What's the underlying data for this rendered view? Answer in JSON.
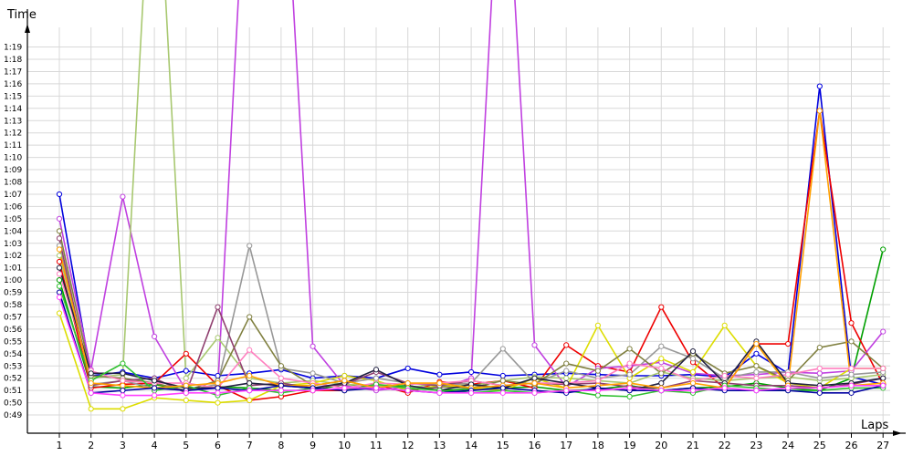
{
  "chart_data": {
    "type": "line",
    "title": "",
    "xlabel": "Laps",
    "ylabel": "Time",
    "grid": true,
    "legend": "none",
    "x": [
      1,
      2,
      3,
      4,
      5,
      6,
      7,
      8,
      9,
      10,
      11,
      12,
      13,
      14,
      15,
      16,
      17,
      18,
      19,
      20,
      21,
      22,
      23,
      24,
      25,
      26,
      27
    ],
    "xlim": [
      1,
      27
    ],
    "ylim_seconds": [
      48,
      80
    ],
    "y_ticks": [
      "0:49",
      "0:50",
      "0:51",
      "0:52",
      "0:53",
      "0:54",
      "0:55",
      "0:56",
      "0:57",
      "0:58",
      "0:59",
      "1:00",
      "1:01",
      "1:02",
      "1:03",
      "1:04",
      "1:05",
      "1:06",
      "1:07",
      "1:08",
      "1:09",
      "1:10",
      "1:11",
      "1:12",
      "1:13",
      "1:14",
      "1:15",
      "1:16",
      "1:17",
      "1:18",
      "1:19"
    ],
    "unit": "lap time, seconds",
    "series": [
      {
        "color": "#0000dd",
        "values": [
          67.0,
          52.2,
          52.5,
          52.0,
          52.6,
          52.2,
          52.4,
          52.7,
          52.0,
          52.2,
          52.0,
          52.8,
          52.3,
          52.5,
          52.2,
          52.3,
          52.4,
          52.3,
          52.2,
          52.2,
          52.3,
          52.1,
          54.0,
          52.4,
          75.8,
          52.1,
          51.5
        ]
      },
      {
        "color": "#00a000",
        "values": [
          60.0,
          51.3,
          51.2,
          51.5,
          51.0,
          51.3,
          51.2,
          51.0,
          51.0,
          51.5,
          51.3,
          51.4,
          51.0,
          51.1,
          51.2,
          51.3,
          51.0,
          51.1,
          51.4,
          51.0,
          51.2,
          51.3,
          51.6,
          51.2,
          51.0,
          52.0,
          62.5
        ]
      },
      {
        "color": "#ee0000",
        "values": [
          61.5,
          51.2,
          51.5,
          51.6,
          54.0,
          51.4,
          50.2,
          50.5,
          51.0,
          51.0,
          51.5,
          50.8,
          51.7,
          51.5,
          51.8,
          51.2,
          54.7,
          53.0,
          52.5,
          57.8,
          53.3,
          51.2,
          54.8,
          54.8,
          73.8,
          56.5,
          51.5
        ]
      },
      {
        "color": "#c040e0",
        "values": [
          65.0,
          52.7,
          66.8,
          55.4,
          51.0,
          51.2,
          100.0,
          100.0,
          54.6,
          51.4,
          51.0,
          51.3,
          51.2,
          52.0,
          100.0,
          54.7,
          51.3,
          52.8,
          53.0,
          53.3,
          52.4,
          52.2,
          52.3,
          52.5,
          52.4,
          52.6,
          55.8
        ]
      },
      {
        "color": "#a8c870",
        "values": [
          62.0,
          52.0,
          52.3,
          100.0,
          52.0,
          55.3,
          52.0,
          51.6,
          51.8,
          51.5,
          51.4,
          51.2,
          51.6,
          51.4,
          51.8,
          52.1,
          52.0,
          51.8,
          51.6,
          52.5,
          52.0,
          51.8,
          52.0,
          52.1,
          51.8,
          52.0,
          52.3
        ]
      },
      {
        "color": "#dddd00",
        "values": [
          57.3,
          49.5,
          49.5,
          50.4,
          50.2,
          50.0,
          50.2,
          51.4,
          51.6,
          52.2,
          51.8,
          51.0,
          51.4,
          51.2,
          51.0,
          52.0,
          51.2,
          56.3,
          52.0,
          53.6,
          52.5,
          56.3,
          53.0,
          51.6,
          51.2,
          52.8,
          52.8
        ]
      },
      {
        "color": "#989898",
        "values": [
          62.8,
          51.5,
          51.8,
          51.2,
          51.0,
          51.5,
          62.8,
          52.8,
          52.4,
          51.6,
          52.0,
          51.6,
          51.4,
          51.6,
          54.4,
          51.6,
          52.6,
          52.0,
          52.3,
          54.6,
          53.6,
          52.0,
          52.5,
          52.5,
          52.0,
          52.3,
          52.5
        ]
      },
      {
        "color": "#808040",
        "values": [
          64.0,
          52.2,
          52.0,
          51.6,
          51.0,
          51.8,
          57.0,
          53.0,
          51.4,
          51.8,
          51.2,
          51.0,
          51.3,
          51.2,
          51.8,
          51.5,
          53.2,
          52.6,
          54.4,
          52.4,
          54.0,
          52.4,
          53.0,
          51.8,
          54.5,
          55.0,
          52.8
        ]
      },
      {
        "color": "#904070",
        "values": [
          63.4,
          51.4,
          51.8,
          52.0,
          50.8,
          57.8,
          51.4,
          51.6,
          51.2,
          51.5,
          52.5,
          51.6,
          51.4,
          51.8,
          51.4,
          51.6,
          51.5,
          51.6,
          51.3,
          51.2,
          51.8,
          51.6,
          51.4,
          51.4,
          51.2,
          51.5,
          52.0
        ]
      },
      {
        "color": "#ff7fbf",
        "values": [
          60.5,
          52.6,
          51.8,
          51.6,
          51.6,
          51.2,
          54.3,
          52.0,
          51.6,
          51.2,
          51.6,
          51.5,
          51.6,
          51.8,
          51.4,
          51.6,
          51.6,
          51.8,
          53.2,
          52.8,
          51.8,
          52.2,
          52.0,
          52.3,
          52.8,
          52.8,
          52.8
        ]
      },
      {
        "color": "#202040",
        "values": [
          61.0,
          52.4,
          52.4,
          51.8,
          51.2,
          51.2,
          51.6,
          51.4,
          51.2,
          51.6,
          52.7,
          51.4,
          51.0,
          51.5,
          51.2,
          52.0,
          51.6,
          51.2,
          51.0,
          51.6,
          54.2,
          51.6,
          55.0,
          51.6,
          51.4,
          51.6,
          52.0
        ]
      },
      {
        "color": "#30c030",
        "values": [
          59.5,
          51.8,
          53.2,
          51.0,
          51.4,
          50.6,
          51.2,
          50.8,
          51.2,
          51.0,
          51.5,
          51.2,
          51.0,
          50.8,
          51.0,
          50.8,
          51.0,
          50.6,
          50.5,
          51.0,
          50.8,
          51.4,
          51.2,
          51.0,
          51.0,
          51.2,
          51.2
        ]
      },
      {
        "color": "#ffa000",
        "values": [
          62.5,
          51.6,
          51.4,
          51.2,
          51.4,
          51.6,
          52.2,
          51.4,
          51.4,
          51.8,
          51.2,
          51.6,
          51.6,
          51.2,
          51.4,
          51.6,
          51.2,
          51.4,
          51.6,
          51.2,
          51.6,
          51.2,
          54.8,
          51.4,
          73.8,
          51.4,
          51.6
        ]
      },
      {
        "color": "#0000a0",
        "values": [
          59.0,
          50.8,
          51.0,
          51.2,
          51.0,
          51.2,
          51.0,
          51.4,
          51.2,
          51.0,
          51.2,
          51.0,
          50.8,
          51.0,
          51.2,
          51.0,
          50.8,
          51.2,
          51.0,
          51.0,
          51.2,
          51.0,
          51.0,
          51.0,
          50.8,
          50.8,
          51.4
        ]
      },
      {
        "color": "#ff40ff",
        "values": [
          58.6,
          50.8,
          50.6,
          50.6,
          50.8,
          50.8,
          51.0,
          51.0,
          51.0,
          51.2,
          51.2,
          51.0,
          50.8,
          50.8,
          50.8,
          50.8,
          51.0,
          51.0,
          51.2,
          51.0,
          51.0,
          51.2,
          51.0,
          51.2,
          51.2,
          51.4,
          51.4
        ]
      }
    ]
  }
}
